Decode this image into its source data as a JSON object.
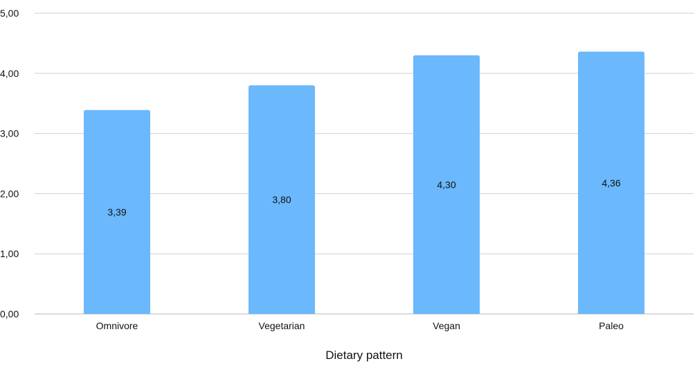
{
  "chart_data": {
    "type": "bar",
    "title": "",
    "xlabel": "Dietary pattern",
    "ylabel": "",
    "categories": [
      "Omnivore",
      "Vegetarian",
      "Vegan",
      "Paleo"
    ],
    "values": [
      3.39,
      3.8,
      4.3,
      4.36
    ],
    "value_labels": [
      "3,39",
      "3,80",
      "4,30",
      "4,36"
    ],
    "ylim": [
      0,
      5
    ],
    "yticks": [
      0,
      1,
      2,
      3,
      4,
      5
    ],
    "ytick_labels": [
      "0,00",
      "1,00",
      "2,00",
      "3,00",
      "4,00",
      "5,00"
    ],
    "grid": true,
    "legend": "none",
    "bar_color": "#6BB8FC",
    "grid_color": "#CFCFCF"
  }
}
